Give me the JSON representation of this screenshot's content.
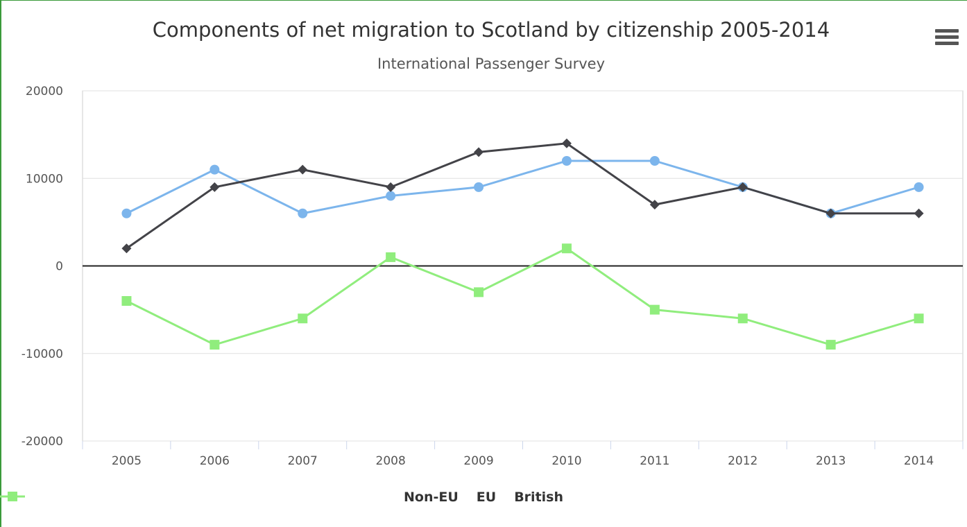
{
  "chart_data": {
    "type": "line",
    "title": "Components of net migration to Scotland by citizenship 2005-2014",
    "subtitle": "International Passenger Survey",
    "xlabel": "",
    "ylabel": "",
    "categories": [
      "2005",
      "2006",
      "2007",
      "2008",
      "2009",
      "2010",
      "2011",
      "2012",
      "2013",
      "2014"
    ],
    "ylim": [
      -20000,
      20000
    ],
    "yticks": [
      20000,
      10000,
      0,
      -10000,
      -20000
    ],
    "grid": true,
    "legend_position": "bottom",
    "series": [
      {
        "name": "Non-EU",
        "color": "#7cb5ec",
        "marker": "circle",
        "values": [
          6000,
          11000,
          6000,
          8000,
          9000,
          12000,
          12000,
          9000,
          6000,
          9000
        ]
      },
      {
        "name": "EU",
        "color": "#434348",
        "marker": "diamond",
        "values": [
          2000,
          9000,
          11000,
          9000,
          13000,
          14000,
          7000,
          9000,
          6000,
          6000
        ]
      },
      {
        "name": "British",
        "color": "#90ed7d",
        "marker": "square",
        "values": [
          -4000,
          -9000,
          -6000,
          1000,
          -3000,
          2000,
          -5000,
          -6000,
          -9000,
          -6000
        ]
      }
    ]
  },
  "menu": {
    "icon": "hamburger-menu-icon"
  }
}
